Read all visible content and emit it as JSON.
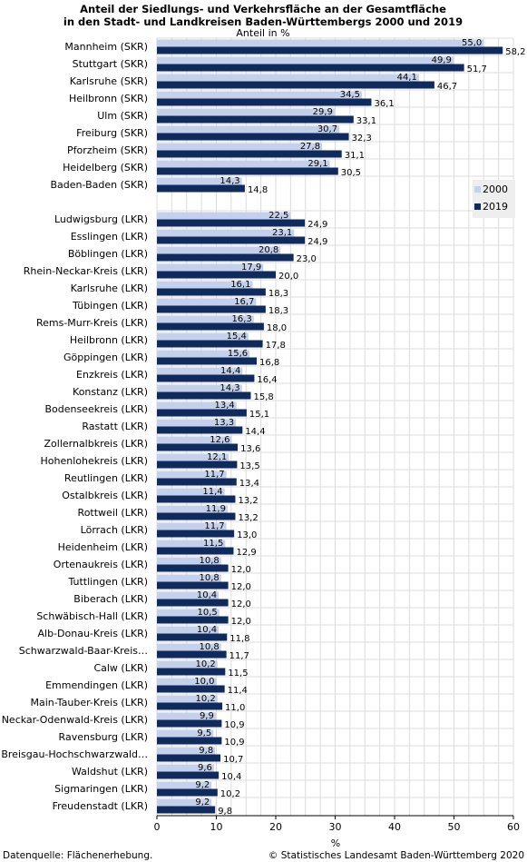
{
  "chart_data": {
    "type": "bar",
    "orientation": "horizontal",
    "title_line1": "Anteil der Siedlungs- und Verkehrsfläche an der Gesamtfläche",
    "title_line2": "in den Stadt- und Landkreisen Baden-Württembergs 2000 und 2019",
    "unit_label": "Anteil in %",
    "xlabel": "%",
    "xlim": [
      0,
      60
    ],
    "xticks": [
      0,
      10,
      20,
      30,
      40,
      50,
      60
    ],
    "grid": true,
    "legend_position": "right",
    "colors": {
      "s2000": "#c5d1ea",
      "s2019": "#0f2a5c",
      "grid": "#dcdcdc",
      "legend_bg": "#eeeeee"
    },
    "series": [
      {
        "name": "2000"
      },
      {
        "name": "2019"
      }
    ],
    "groups": [
      {
        "categories": [
          "Mannheim (SKR)",
          "Stuttgart (SKR)",
          "Karlsruhe (SKR)",
          "Heilbronn (SKR)",
          "Ulm (SKR)",
          "Freiburg (SKR)",
          "Pforzheim (SKR)",
          "Heidelberg (SKR)",
          "Baden-Baden (SKR)"
        ],
        "v2000": [
          "55,0",
          "49,9",
          "44,1",
          "34,5",
          "29,9",
          "30,7",
          "27,8",
          "29,1",
          "14,3"
        ],
        "v2019": [
          "58,2",
          "51,7",
          "46,7",
          "36,1",
          "33,1",
          "32,3",
          "31,1",
          "30,5",
          "14,8"
        ]
      },
      {
        "categories": [
          "Ludwigsburg (LKR)",
          "Esslingen (LKR)",
          "Böblingen (LKR)",
          "Rhein-Neckar-Kreis (LKR)",
          "Karlsruhe (LKR)",
          "Tübingen (LKR)",
          "Rems-Murr-Kreis (LKR)",
          "Heilbronn (LKR)",
          "Göppingen (LKR)",
          "Enzkreis (LKR)",
          "Konstanz (LKR)",
          "Bodenseekreis (LKR)",
          "Rastatt (LKR)",
          "Zollernalbkreis (LKR)",
          "Hohenlohekreis (LKR)",
          "Reutlingen (LKR)",
          "Ostalbkreis (LKR)",
          "Rottweil (LKR)",
          "Lörrach (LKR)",
          "Heidenheim (LKR)",
          "Ortenaukreis (LKR)",
          "Tuttlingen (LKR)",
          "Biberach (LKR)",
          "Schwäbisch-Hall (LKR)",
          "Alb-Donau-Kreis (LKR)",
          "Schwarzwald-Baar-Kreis…",
          "Calw (LKR)",
          "Emmendingen (LKR)",
          "Main-Tauber-Kreis (LKR)",
          "Neckar-Odenwald-Kreis (LKR)",
          "Ravensburg (LKR)",
          "Breisgau-Hochschwarzwald…",
          "Waldshut (LKR)",
          "Sigmaringen (LKR)",
          "Freudenstadt (LKR)"
        ],
        "v2000": [
          "22,5",
          "23,1",
          "20,8",
          "17,9",
          "16,1",
          "16,7",
          "16,3",
          "15,4",
          "15,6",
          "14,4",
          "14,3",
          "13,4",
          "13,3",
          "12,6",
          "12,1",
          "11,7",
          "11,4",
          "11,9",
          "11,7",
          "11,5",
          "10,8",
          "10,8",
          "10,4",
          "10,5",
          "10,4",
          "10,8",
          "10,2",
          "10,0",
          "10,2",
          "9,9",
          "9,5",
          "9,8",
          "9,6",
          "9,2",
          "9,2"
        ],
        "v2019": [
          "24,9",
          "24,9",
          "23,0",
          "20,0",
          "18,3",
          "18,3",
          "18,0",
          "17,8",
          "16,8",
          "16,4",
          "15,8",
          "15,1",
          "14,4",
          "13,6",
          "13,5",
          "13,4",
          "13,2",
          "13,2",
          "13,0",
          "12,9",
          "12,0",
          "12,0",
          "12,0",
          "12,0",
          "11,8",
          "11,7",
          "11,5",
          "11,4",
          "11,0",
          "10,9",
          "10,9",
          "10,7",
          "10,4",
          "10,2",
          "9,8"
        ]
      }
    ]
  },
  "footer": {
    "source": "Datenquelle: Flächenerhebung.",
    "copyright": "© Statistisches Landesamt Baden-Württemberg 2020"
  }
}
